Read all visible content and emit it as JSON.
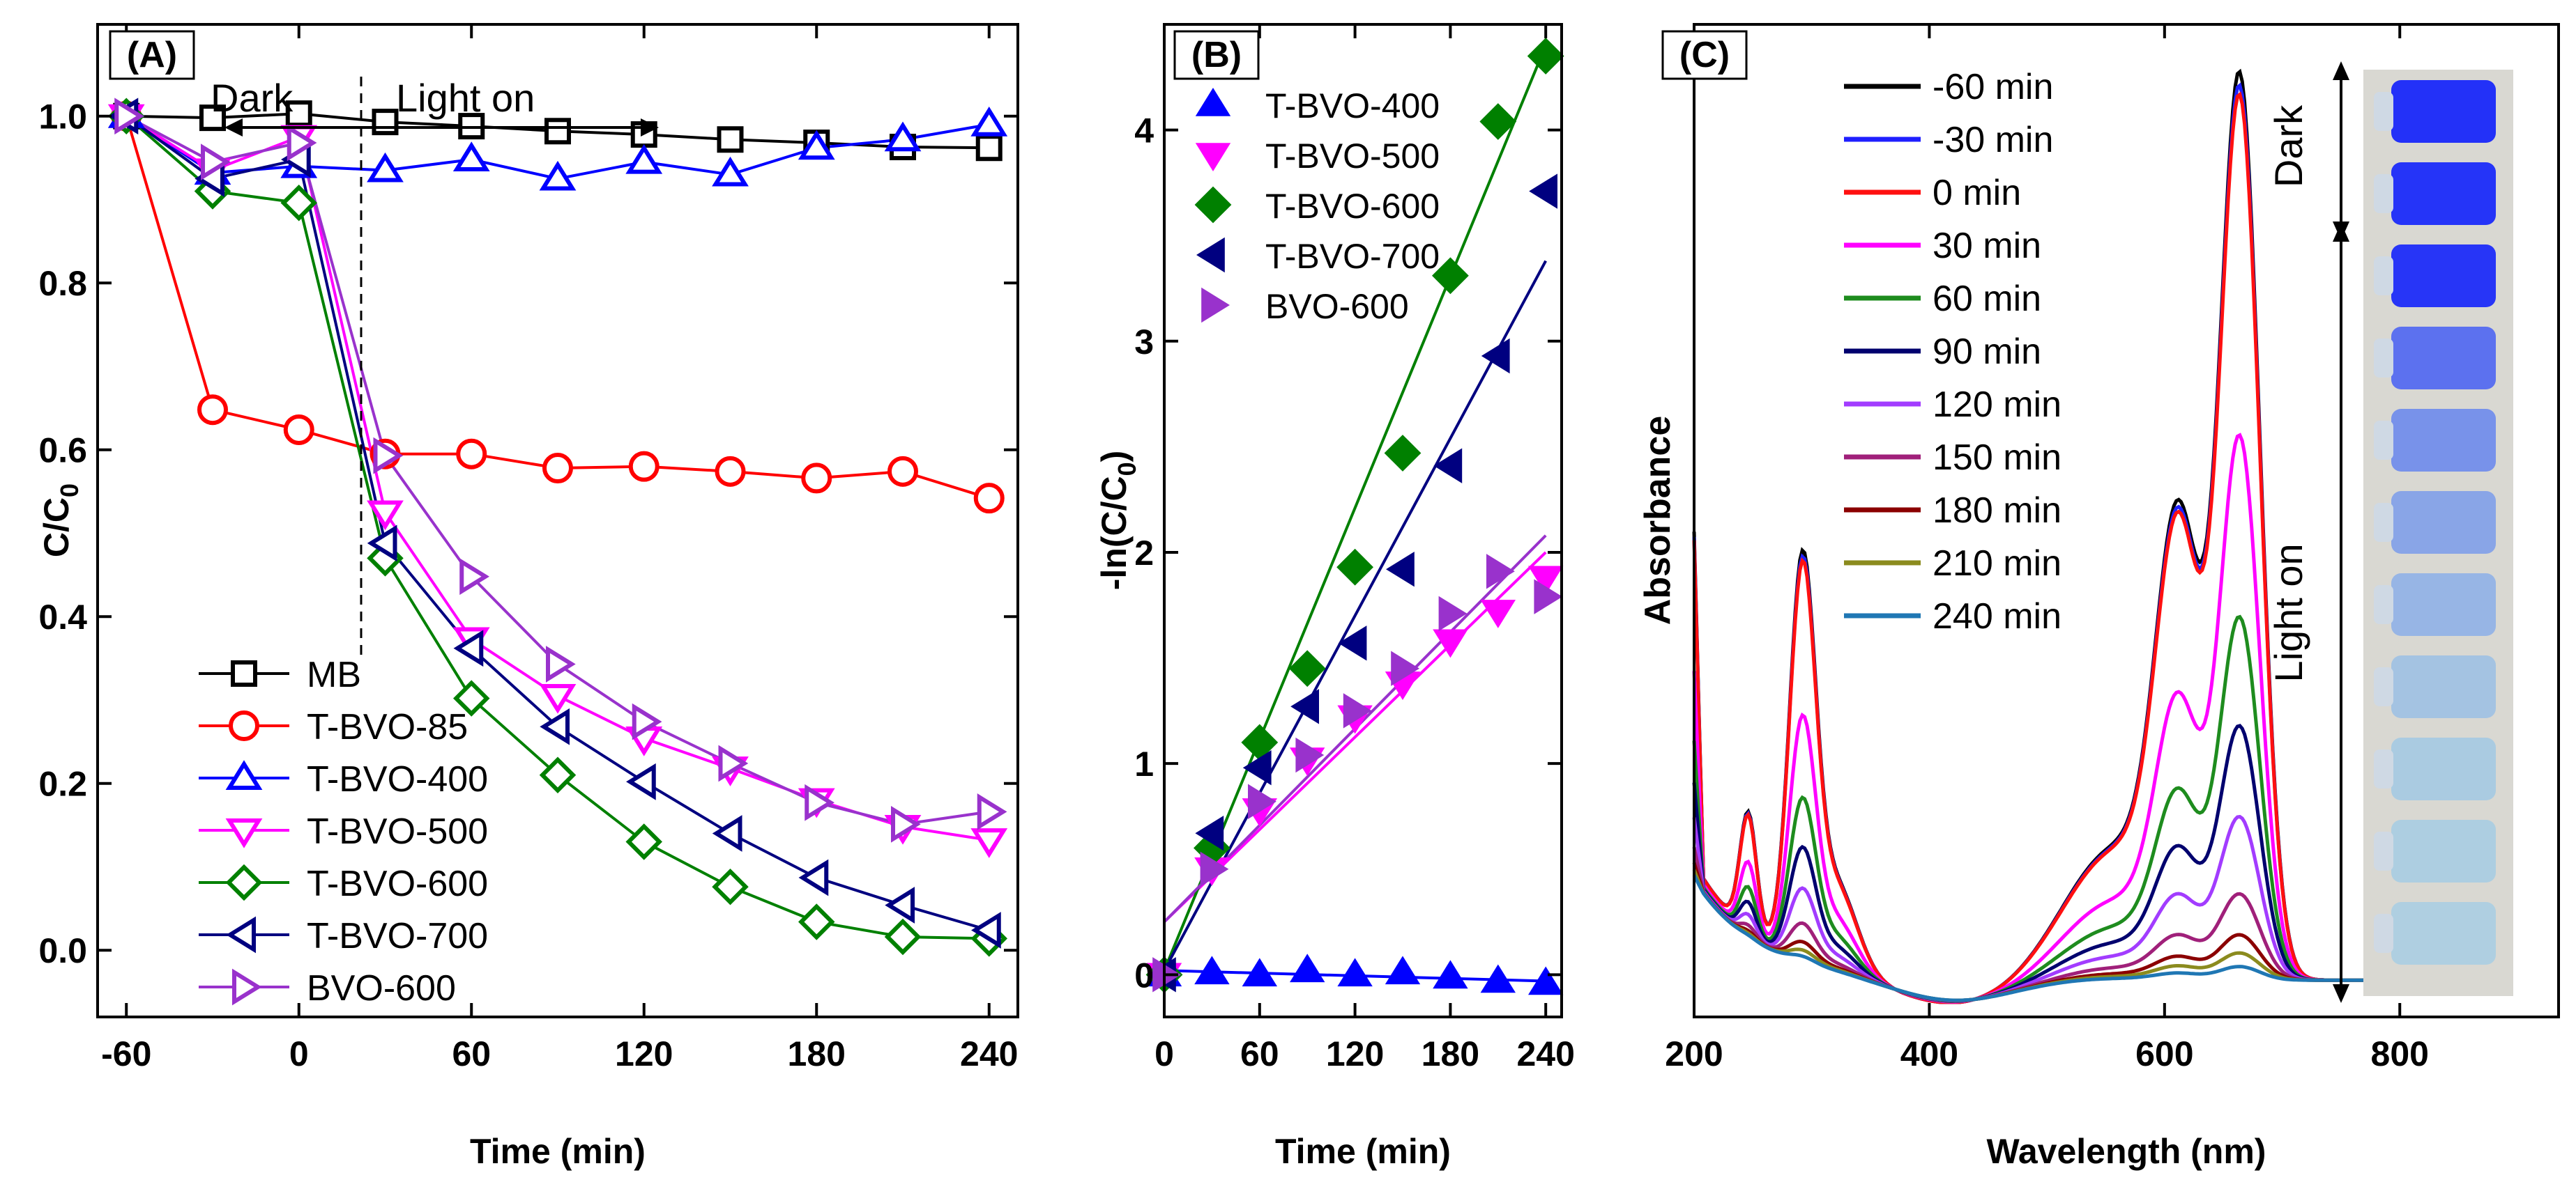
{
  "figure": {
    "panels": [
      "(A)",
      "(B)",
      "(C)"
    ]
  },
  "chart_data": [
    {
      "id": "A",
      "type": "line",
      "panel_label": "(A)",
      "xlabel": "Time (min)",
      "ylabel_main": "C/C",
      "ylabel_sub": "0",
      "xlim": [
        -70,
        250
      ],
      "ylim": [
        -0.08,
        1.11
      ],
      "xticks": [
        -60,
        0,
        60,
        120,
        180,
        240
      ],
      "xtick_labels": [
        "-60",
        "0",
        "60",
        "120",
        "180",
        "240"
      ],
      "yticks": [
        0.0,
        0.2,
        0.4,
        0.6,
        0.8,
        1.0
      ],
      "ytick_labels": [
        "0.0",
        "0.2",
        "0.4",
        "0.6",
        "0.8",
        "1.0"
      ],
      "annotations": {
        "dark": "Dark",
        "light_on": "Light on"
      },
      "x": [
        -60,
        -30,
        0,
        30,
        60,
        90,
        120,
        150,
        180,
        210,
        240
      ],
      "series": [
        {
          "name": "MB",
          "color": "#000000",
          "marker": "square",
          "values": [
            1.0,
            0.998,
            1.003,
            0.993,
            0.988,
            0.982,
            0.978,
            0.972,
            0.968,
            0.963,
            0.962
          ]
        },
        {
          "name": "T-BVO-85",
          "color": "#ff0000",
          "marker": "circle",
          "values": [
            1.0,
            0.648,
            0.624,
            0.595,
            0.595,
            0.578,
            0.58,
            0.574,
            0.566,
            0.574,
            0.542
          ]
        },
        {
          "name": "T-BVO-400",
          "color": "#0000ff",
          "marker": "triangle-up",
          "values": [
            1.0,
            0.932,
            0.94,
            0.935,
            0.948,
            0.925,
            0.945,
            0.93,
            0.962,
            0.972,
            0.99
          ]
        },
        {
          "name": "T-BVO-500",
          "color": "#ff00ff",
          "marker": "triangle-down",
          "values": [
            1.0,
            0.935,
            0.975,
            0.525,
            0.373,
            0.305,
            0.254,
            0.218,
            0.18,
            0.148,
            0.132
          ]
        },
        {
          "name": "T-BVO-600",
          "color": "#008000",
          "marker": "diamond",
          "values": [
            1.0,
            0.91,
            0.896,
            0.47,
            0.302,
            0.21,
            0.13,
            0.076,
            0.034,
            0.016,
            0.014
          ]
        },
        {
          "name": "T-BVO-700",
          "color": "#000080",
          "marker": "triangle-left",
          "values": [
            1.0,
            0.925,
            0.948,
            0.488,
            0.362,
            0.268,
            0.202,
            0.14,
            0.087,
            0.054,
            0.024
          ]
        },
        {
          "name": "BVO-600",
          "color": "#9932cc",
          "marker": "triangle-right",
          "values": [
            1.0,
            0.945,
            0.968,
            0.593,
            0.448,
            0.343,
            0.274,
            0.224,
            0.177,
            0.151,
            0.166
          ]
        }
      ]
    },
    {
      "id": "B",
      "type": "scatter",
      "panel_label": "(B)",
      "xlabel": "Time (min)",
      "ylabel": "-ln(C/C",
      "ylabel_sub": "0",
      "ylabel_tail": ")",
      "xlim": [
        0,
        250
      ],
      "ylim": [
        -0.2,
        4.5
      ],
      "xticks": [
        0,
        60,
        120,
        180,
        240
      ],
      "xtick_labels": [
        "0",
        "60",
        "120",
        "180",
        "240"
      ],
      "yticks": [
        0,
        1,
        2,
        3,
        4
      ],
      "ytick_labels": [
        "0",
        "1",
        "2",
        "3",
        "4"
      ],
      "x": [
        0,
        30,
        60,
        90,
        120,
        150,
        180,
        210,
        240
      ],
      "series": [
        {
          "name": "T-BVO-400",
          "color": "#0000ff",
          "marker": "triangle-up",
          "values": [
            0.0,
            0.01,
            0.0,
            0.02,
            0.0,
            0.01,
            -0.01,
            -0.03,
            -0.04
          ],
          "fit": [
            0.02,
            -0.03
          ]
        },
        {
          "name": "T-BVO-500",
          "color": "#ff00ff",
          "marker": "triangle-down",
          "values": [
            0.0,
            0.5,
            0.78,
            1.02,
            1.22,
            1.38,
            1.58,
            1.72,
            1.88
          ],
          "fit": [
            0.25,
            2.0
          ]
        },
        {
          "name": "T-BVO-600",
          "color": "#008000",
          "marker": "diamond",
          "values": [
            0.0,
            0.6,
            1.1,
            1.45,
            1.93,
            2.47,
            3.31,
            4.04,
            4.35
          ],
          "fit": [
            0.02,
            4.4
          ]
        },
        {
          "name": "T-BVO-700",
          "color": "#000080",
          "marker": "triangle-left",
          "values": [
            0.0,
            0.67,
            0.98,
            1.27,
            1.57,
            1.92,
            2.41,
            2.93,
            3.71
          ],
          "fit": [
            0.02,
            3.38
          ]
        },
        {
          "name": "BVO-600",
          "color": "#9932cc",
          "marker": "triangle-right",
          "values": [
            0.0,
            0.5,
            0.82,
            1.04,
            1.25,
            1.45,
            1.71,
            1.91,
            1.79
          ],
          "fit": [
            0.25,
            2.08
          ]
        }
      ]
    },
    {
      "id": "C",
      "type": "line",
      "panel_label": "(C)",
      "xlabel": "Wavelength (nm)",
      "ylabel": "Absorbance",
      "xlim": [
        200,
        935
      ],
      "ylim": [
        -0.05,
        1.3
      ],
      "xticks": [
        200,
        400,
        600,
        800
      ],
      "xtick_labels": [
        "200",
        "400",
        "600",
        "800"
      ],
      "annotations": {
        "dark": "Dark",
        "light_on": "Light on"
      },
      "series": [
        {
          "name": "-60 min",
          "color": "#000000",
          "scale": 1.0
        },
        {
          "name": "-30 min",
          "color": "#1f1fff",
          "scale": 0.985
        },
        {
          "name": "0 min",
          "color": "#ff1010",
          "scale": 0.975
        },
        {
          "name": "30 min",
          "color": "#ff00ff",
          "scale": 0.6
        },
        {
          "name": "60 min",
          "color": "#1e8c1e",
          "scale": 0.4
        },
        {
          "name": "90 min",
          "color": "#00006e",
          "scale": 0.28
        },
        {
          "name": "120 min",
          "color": "#a23cff",
          "scale": 0.18
        },
        {
          "name": "150 min",
          "color": "#a0207a",
          "scale": 0.095
        },
        {
          "name": "180 min",
          "color": "#8b0000",
          "scale": 0.05
        },
        {
          "name": "210 min",
          "color": "#8b8b1e",
          "scale": 0.03
        },
        {
          "name": "240 min",
          "color": "#1f77b4",
          "scale": 0.015
        }
      ]
    }
  ]
}
